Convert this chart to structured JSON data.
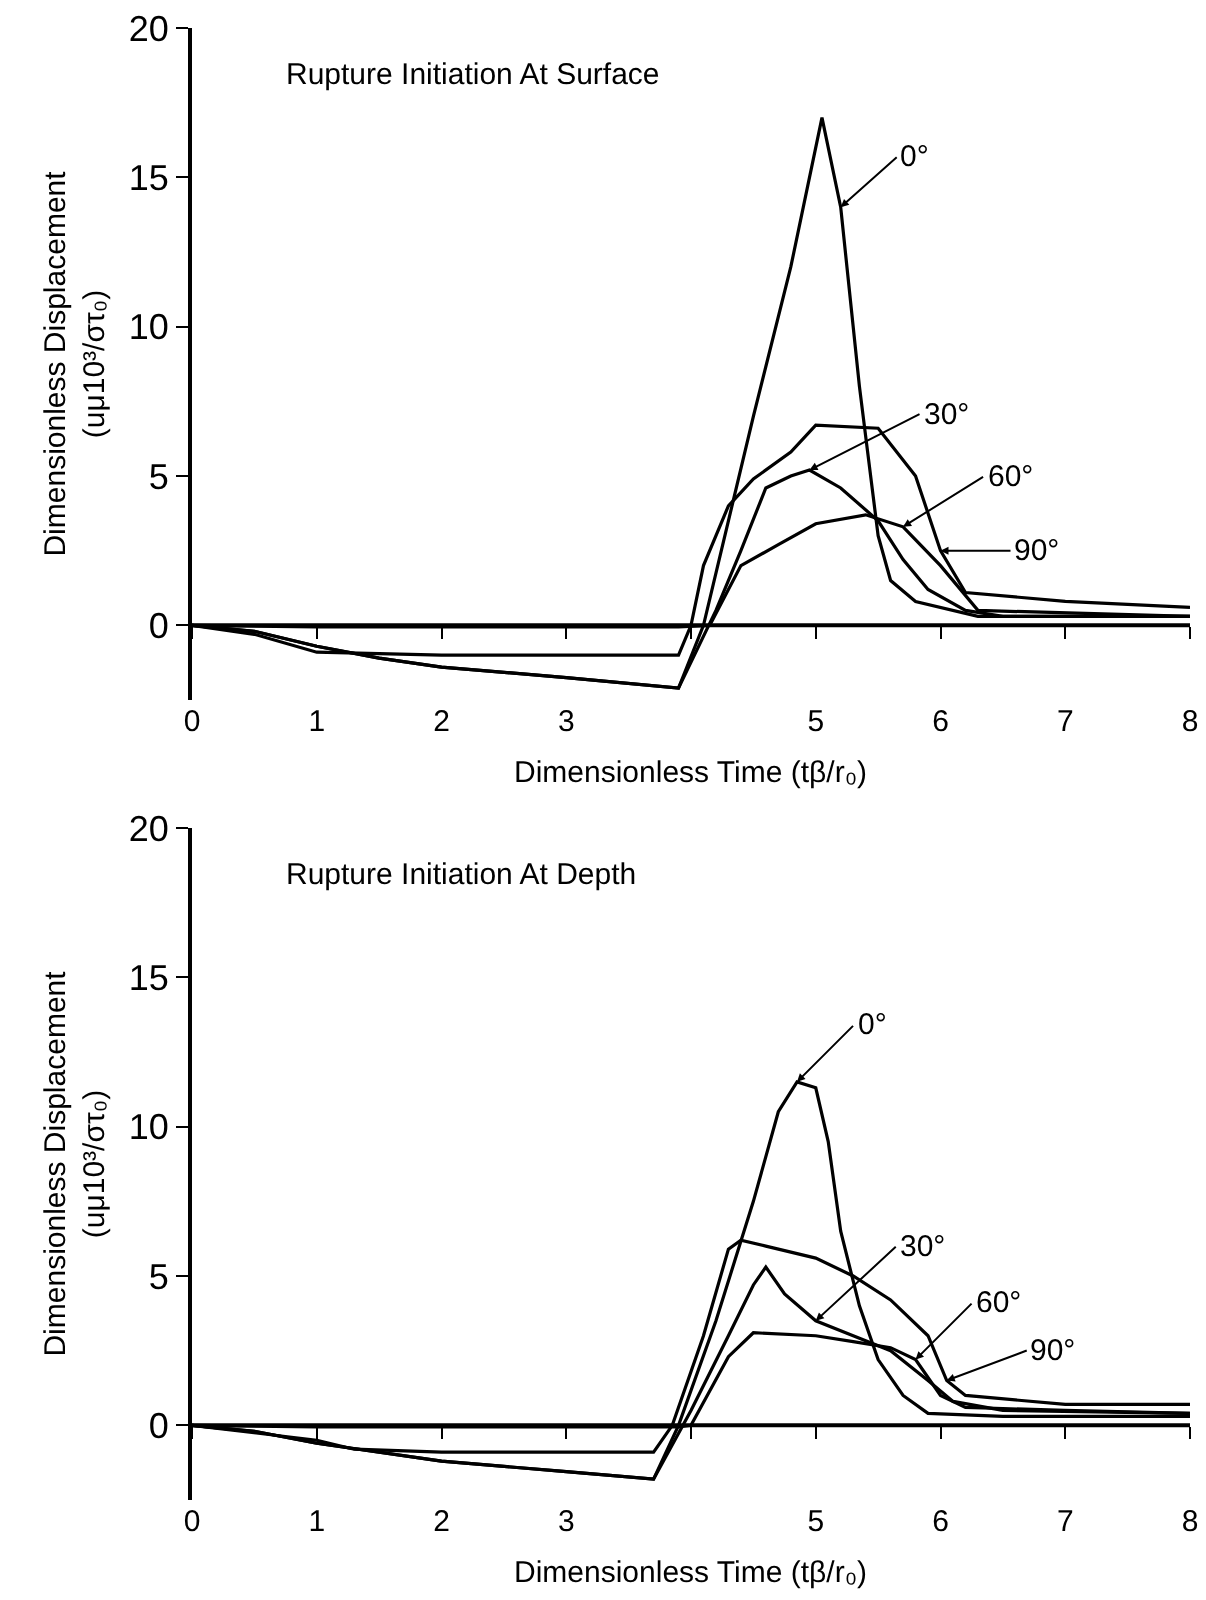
{
  "chart_data": [
    {
      "type": "line",
      "title": "Rupture Initiation At Surface",
      "xlabel": "Dimensionless Time (tβ/r₀)",
      "ylabel": "Dimensionless Displacement\n(uμ10³/στ₀)",
      "xlim": [
        0,
        8
      ],
      "ylim": [
        -2.5,
        20
      ],
      "xticks": [
        0,
        1,
        2,
        3,
        {
          "value": 4,
          "label": null
        },
        5,
        6,
        7,
        8
      ],
      "yticks": [
        0,
        5,
        10,
        15,
        20
      ],
      "grid": false,
      "marker": "none",
      "line_style": "solid",
      "ref_lines": [
        {
          "axis": "y",
          "value": 0,
          "color": "#000000"
        }
      ],
      "series": [
        {
          "color": "#000000",
          "x": [
            0,
            0.5,
            1,
            1.5,
            2,
            3,
            3.9,
            4.1,
            4.5,
            4.8,
            5.05,
            5.2,
            5.35,
            5.5,
            5.6,
            5.8,
            6.3,
            8
          ],
          "values": [
            0,
            -0.2,
            -0.7,
            -1.1,
            -1.4,
            -1.75,
            -2.1,
            0,
            7,
            12,
            17,
            14,
            8,
            3,
            1.5,
            0.8,
            0.3,
            0.3
          ]
        },
        {
          "color": "#000000",
          "x": [
            0,
            0.5,
            1,
            1.5,
            2,
            3,
            3.9,
            4.2,
            4.4,
            4.6,
            4.8,
            4.95,
            5.2,
            5.5,
            5.7,
            5.9,
            6.2,
            6.5,
            8
          ],
          "values": [
            0,
            -0.2,
            -0.7,
            -1.1,
            -1.4,
            -1.75,
            -2.1,
            0.5,
            2.5,
            4.6,
            5,
            5.2,
            4.6,
            3.5,
            2.2,
            1.2,
            0.5,
            0.3,
            0.3
          ]
        },
        {
          "color": "#000000",
          "x": [
            0,
            1,
            3.9,
            4.15,
            4.4,
            4.7,
            5,
            5.4,
            5.7,
            6,
            6.3,
            8
          ],
          "values": [
            0,
            -0.05,
            -0.05,
            0,
            2,
            2.7,
            3.4,
            3.7,
            3.3,
            2,
            0.5,
            0.3
          ]
        },
        {
          "color": "#000000",
          "x": [
            0,
            0.5,
            1,
            2,
            3.9,
            4,
            4.1,
            4.3,
            4.5,
            4.8,
            5,
            5.5,
            5.8,
            6,
            6.2,
            7,
            8
          ],
          "values": [
            0,
            -0.3,
            -0.9,
            -1,
            -1,
            0,
            2,
            4,
            4.9,
            5.8,
            6.7,
            6.6,
            5,
            2.5,
            1.1,
            0.8,
            0.6
          ]
        }
      ],
      "annotations": [
        {
          "text": "0°",
          "x": 5.2,
          "y": 14
        },
        {
          "text": "30°",
          "x": 4.95,
          "y": 5.2
        },
        {
          "text": "60°",
          "x": 5.7,
          "y": 3.3
        },
        {
          "text": "90°",
          "x": 6,
          "y": 2.5
        }
      ]
    },
    {
      "type": "line",
      "title": "Rupture Initiation At Depth",
      "xlabel": "Dimensionless Time (tβ/r₀)",
      "ylabel": "Dimensionless Displacement\n(uμ10³/στ₀)",
      "xlim": [
        0,
        8
      ],
      "ylim": [
        -2.5,
        20
      ],
      "xticks": [
        0,
        1,
        2,
        3,
        {
          "value": 4,
          "label": null
        },
        5,
        6,
        7,
        8
      ],
      "yticks": [
        0,
        5,
        10,
        15,
        20
      ],
      "grid": false,
      "marker": "none",
      "line_style": "solid",
      "ref_lines": [
        {
          "axis": "y",
          "value": 0,
          "color": "#000000"
        }
      ],
      "series": [
        {
          "color": "#000000",
          "x": [
            0,
            0.5,
            1,
            2,
            3,
            3.7,
            3.9,
            4.2,
            4.5,
            4.7,
            4.85,
            5,
            5.1,
            5.2,
            5.35,
            5.5,
            5.7,
            5.9,
            6.5,
            8
          ],
          "values": [
            0,
            -0.2,
            -0.6,
            -1.2,
            -1.55,
            -1.8,
            0,
            3.5,
            7.5,
            10.5,
            11.5,
            11.3,
            9.5,
            6.5,
            4,
            2.2,
            1,
            0.4,
            0.3,
            0.3
          ]
        },
        {
          "color": "#000000",
          "x": [
            0,
            0.5,
            1,
            2,
            3,
            3.7,
            4,
            4.3,
            4.5,
            4.6,
            4.75,
            5,
            5.3,
            5.6,
            5.9,
            6.1,
            6.5,
            8
          ],
          "values": [
            0,
            -0.2,
            -0.6,
            -1.2,
            -1.55,
            -1.8,
            0.5,
            3,
            4.7,
            5.3,
            4.4,
            3.5,
            3,
            2.5,
            1.5,
            0.8,
            0.5,
            0.4
          ]
        },
        {
          "color": "#000000",
          "x": [
            0,
            1,
            3.9,
            4,
            4.3,
            4.5,
            5,
            5.3,
            5.6,
            5.8,
            6,
            6.2,
            7,
            8
          ],
          "values": [
            0,
            -0.05,
            -0.05,
            0,
            2.3,
            3.1,
            3,
            2.8,
            2.6,
            2.2,
            1,
            0.6,
            0.5,
            0.4
          ]
        },
        {
          "color": "#000000",
          "x": [
            0,
            1,
            1.3,
            2,
            3.7,
            3.85,
            4.1,
            4.3,
            4.4,
            4.6,
            5,
            5.3,
            5.6,
            5.9,
            6.05,
            6.2,
            7,
            8
          ],
          "values": [
            0,
            -0.5,
            -0.8,
            -0.9,
            -0.9,
            0,
            3,
            5.9,
            6.2,
            6,
            5.6,
            5,
            4.2,
            3,
            1.5,
            1,
            0.7,
            0.7
          ]
        }
      ],
      "annotations": [
        {
          "text": "0°",
          "x": 4.85,
          "y": 11.5
        },
        {
          "text": "30°",
          "x": 5,
          "y": 3.5
        },
        {
          "text": "60°",
          "x": 5.8,
          "y": 2.2
        },
        {
          "text": "90°",
          "x": 6.05,
          "y": 1.5
        }
      ]
    }
  ]
}
